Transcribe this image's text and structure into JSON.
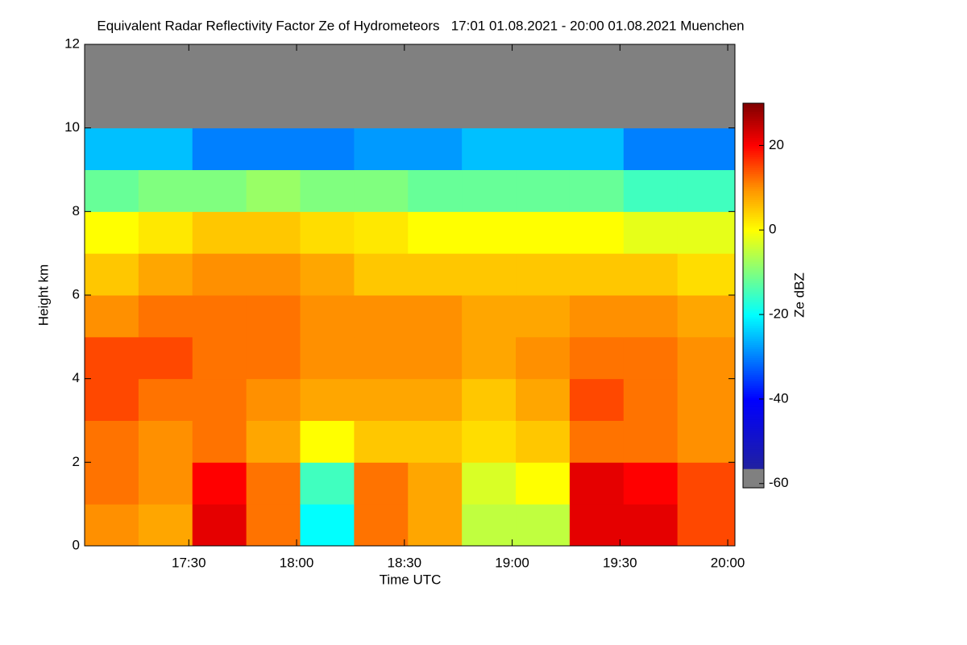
{
  "chart_data": {
    "type": "heatmap",
    "title": "Equivalent Radar Reflectivity Factor Ze of Hydrometeors   17:01 01.08.2021 - 20:00 01.08.2021 Muenchen",
    "xlabel": "Time UTC",
    "ylabel": "Height km",
    "colorbar_label": "Ze dBZ",
    "xlim": [
      1021,
      1202
    ],
    "xticks": [
      {
        "value": 1050,
        "label": "17:30"
      },
      {
        "value": 1080,
        "label": "18:00"
      },
      {
        "value": 1110,
        "label": "18:30"
      },
      {
        "value": 1140,
        "label": "19:00"
      },
      {
        "value": 1170,
        "label": "19:30"
      },
      {
        "value": 1200,
        "label": "20:00"
      }
    ],
    "ylim": [
      0,
      12
    ],
    "yticks": [
      0,
      2,
      4,
      6,
      8,
      10,
      12
    ],
    "clim": [
      -61,
      30
    ],
    "cticks": [
      -60,
      -40,
      -20,
      0,
      20
    ],
    "colormap": [
      "#808080",
      "#2020a0",
      "#0000ff",
      "#00ffff",
      "#ffff00",
      "#ff9000",
      "#ff0000",
      "#800000"
    ],
    "xbins": [
      1021,
      1036,
      1051,
      1066,
      1081,
      1096,
      1111,
      1126,
      1141,
      1156,
      1171,
      1186,
      1202
    ],
    "ybins": [
      0,
      1,
      2,
      3,
      4,
      5,
      6,
      7,
      8,
      9,
      10,
      11,
      12
    ],
    "z": [
      [
        10,
        8,
        22,
        12,
        -20,
        12,
        8,
        -5,
        -5,
        22,
        22,
        15
      ],
      [
        12,
        10,
        20,
        12,
        -15,
        12,
        8,
        -3,
        0,
        22,
        20,
        15
      ],
      [
        12,
        10,
        12,
        8,
        0,
        5,
        5,
        3,
        5,
        12,
        12,
        10
      ],
      [
        15,
        12,
        12,
        10,
        8,
        8,
        8,
        5,
        8,
        15,
        12,
        10
      ],
      [
        15,
        15,
        12,
        12,
        10,
        10,
        10,
        8,
        10,
        12,
        12,
        10
      ],
      [
        10,
        12,
        12,
        12,
        10,
        10,
        10,
        8,
        8,
        10,
        10,
        8
      ],
      [
        5,
        8,
        10,
        10,
        8,
        5,
        5,
        5,
        5,
        5,
        5,
        3
      ],
      [
        0,
        2,
        5,
        5,
        3,
        2,
        0,
        0,
        0,
        0,
        -2,
        -2
      ],
      [
        -12,
        -10,
        -10,
        -8,
        -10,
        -10,
        -12,
        -12,
        -12,
        -12,
        -15,
        -15
      ],
      [
        -25,
        -25,
        -30,
        -30,
        -30,
        -28,
        -28,
        -25,
        -25,
        -25,
        -30,
        -30
      ],
      [
        -60,
        -60,
        -60,
        -60,
        -60,
        -60,
        -60,
        -60,
        -60,
        -60,
        -60,
        -60
      ],
      [
        -60,
        -60,
        -60,
        -60,
        -60,
        -60,
        -60,
        -60,
        -60,
        -60,
        -60,
        -60
      ]
    ]
  }
}
